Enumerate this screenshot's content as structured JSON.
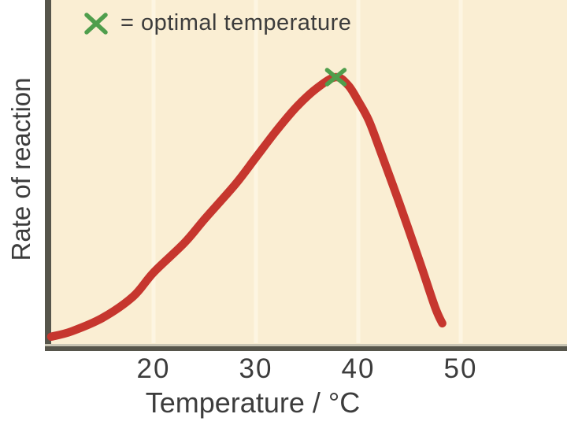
{
  "figure": {
    "legend": {
      "marker": "x",
      "label": "= optimal temperature"
    },
    "x_axis": {
      "label": "Temperature / °C",
      "tick_labels": [
        "20",
        "30",
        "40",
        "50"
      ]
    },
    "y_axis": {
      "label": "Rate of reaction"
    }
  },
  "colors": {
    "plot_background": "#faeed3",
    "curve": "#c6362e",
    "optimal_marker": "#4f9e4c",
    "axis": "#56554b",
    "text": "#3c3c3c",
    "gridline": "#fdf5e2"
  },
  "chart_data": {
    "type": "line",
    "title": "",
    "xlabel": "Temperature / °C",
    "ylabel": "Rate of reaction",
    "xlim": [
      10,
      60
    ],
    "ylim": [
      0,
      1.3
    ],
    "xticks": [
      20,
      30,
      40,
      50
    ],
    "yticks": [],
    "grid": "faint vertical lines at x tick positions",
    "legend_position": "top-left",
    "series": [
      {
        "name": "rate of reaction",
        "points": [
          [
            10,
            0.03
          ],
          [
            12,
            0.05
          ],
          [
            15,
            0.1
          ],
          [
            18,
            0.18
          ],
          [
            20,
            0.27
          ],
          [
            23,
            0.38
          ],
          [
            25,
            0.47
          ],
          [
            28,
            0.6
          ],
          [
            30,
            0.7
          ],
          [
            32,
            0.8
          ],
          [
            34,
            0.89
          ],
          [
            36,
            0.96
          ],
          [
            37.8,
            1.0
          ],
          [
            39,
            0.97
          ],
          [
            40,
            0.91
          ],
          [
            41,
            0.84
          ],
          [
            42,
            0.74
          ],
          [
            44,
            0.53
          ],
          [
            46,
            0.31
          ],
          [
            47.5,
            0.14
          ],
          [
            48.2,
            0.08
          ]
        ]
      }
    ],
    "annotations": [
      {
        "type": "marker",
        "symbol": "x",
        "x": 37.8,
        "y": 1.0,
        "label": "optimal temperature"
      }
    ]
  }
}
